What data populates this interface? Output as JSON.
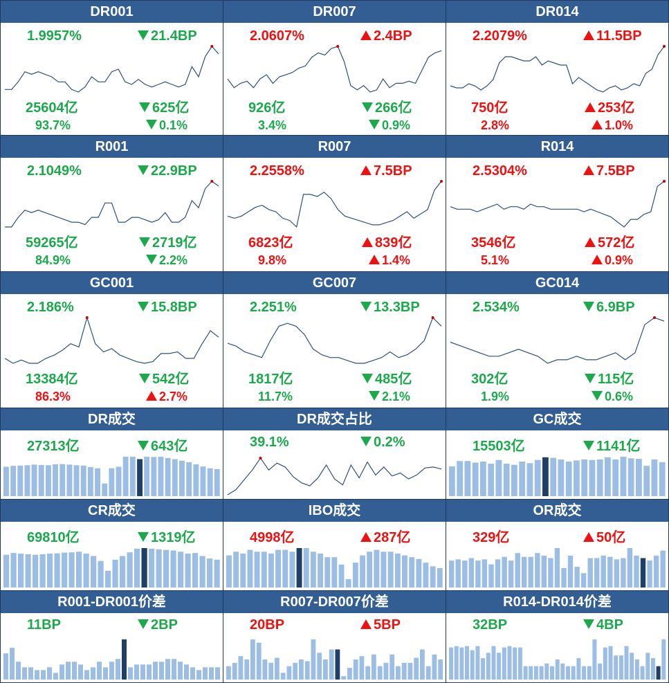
{
  "colors": {
    "up": "#ee1111",
    "down": "#1ba94c",
    "header": "#335e93",
    "line": "#2f4f7f",
    "bar": "#9cbde4",
    "bar_highlight": "#1f3f66",
    "peak": "#cc0000"
  },
  "chart_data": [
    {
      "name": "DR001",
      "type": "line",
      "rate": "1.9957%",
      "rate_dir": "down",
      "rate_change": "21.4BP",
      "rate_change_dir": "down",
      "volume": "25604亿",
      "volume_dir": "down",
      "volume_change": "625亿",
      "volume_change_dir": "down",
      "share": "93.7%",
      "share_dir": "down",
      "share_change": "0.1%",
      "share_change_dir": "down",
      "values": [
        1.85,
        1.85,
        1.88,
        1.92,
        1.91,
        1.92,
        1.91,
        1.9,
        1.88,
        1.88,
        1.85,
        1.84,
        1.86,
        1.9,
        1.88,
        1.88,
        1.92,
        1.93,
        1.88,
        1.87,
        1.89,
        1.87,
        1.86,
        1.87,
        1.88,
        1.87,
        1.86,
        1.87,
        1.94,
        1.9,
        1.98,
        2.02,
        1.99
      ]
    },
    {
      "name": "DR007",
      "type": "line",
      "rate": "2.0607%",
      "rate_dir": "up",
      "rate_change": "2.4BP",
      "rate_change_dir": "up",
      "volume": "926亿",
      "volume_dir": "down",
      "volume_change": "266亿",
      "volume_change_dir": "down",
      "share": "3.4%",
      "share_dir": "down",
      "share_change": "0.9%",
      "share_change_dir": "down",
      "values": [
        1.92,
        1.88,
        1.9,
        1.91,
        1.88,
        1.92,
        1.94,
        1.9,
        1.93,
        1.94,
        1.95,
        1.97,
        1.98,
        2.02,
        2.04,
        2.03,
        2.06,
        2.07,
        2.0,
        1.89,
        1.87,
        1.89,
        1.86,
        1.87,
        1.92,
        1.88,
        1.9,
        1.9,
        1.91,
        1.9,
        1.96,
        2.02,
        2.04,
        2.05
      ]
    },
    {
      "name": "DR014",
      "type": "line",
      "rate": "2.2079%",
      "rate_dir": "up",
      "rate_change": "11.5BP",
      "rate_change_dir": "up",
      "volume": "750亿",
      "volume_dir": "up",
      "volume_change": "253亿",
      "volume_change_dir": "up",
      "share": "2.8%",
      "share_dir": "up",
      "share_change": "1.0%",
      "share_change_dir": "up",
      "values": [
        2.02,
        2.01,
        2.01,
        2.03,
        2.02,
        2.0,
        2.02,
        2.05,
        2.13,
        2.16,
        2.16,
        2.15,
        2.14,
        2.14,
        2.16,
        2.12,
        2.14,
        2.13,
        2.12,
        2.12,
        2.03,
        2.06,
        2.04,
        2.02,
        2.0,
        1.99,
        2.01,
        2.02,
        2.0,
        2.01,
        2.03,
        2.02,
        2.08,
        2.1,
        2.17,
        2.21
      ]
    },
    {
      "name": "R001",
      "type": "line",
      "rate": "2.1049%",
      "rate_dir": "down",
      "rate_change": "22.9BP",
      "rate_change_dir": "down",
      "volume": "59265亿",
      "volume_dir": "down",
      "volume_change": "2719亿",
      "volume_change_dir": "down",
      "share": "84.9%",
      "share_dir": "down",
      "share_change": "2.2%",
      "share_change_dir": "down",
      "values": [
        1.93,
        1.93,
        1.97,
        2.0,
        1.99,
        2.0,
        1.99,
        1.98,
        1.97,
        1.96,
        1.95,
        1.95,
        1.94,
        1.97,
        1.97,
        2.03,
        2.03,
        1.95,
        1.95,
        1.97,
        1.97,
        1.96,
        1.95,
        1.96,
        1.99,
        1.95,
        1.95,
        1.97,
        2.04,
        2.01,
        2.09,
        2.12,
        2.1
      ]
    },
    {
      "name": "R007",
      "type": "line",
      "rate": "2.2558%",
      "rate_dir": "up",
      "rate_change": "7.5BP",
      "rate_change_dir": "up",
      "volume": "6823亿",
      "volume_dir": "up",
      "volume_change": "839亿",
      "volume_change_dir": "up",
      "share": "9.8%",
      "share_dir": "up",
      "share_change": "1.4%",
      "share_change_dir": "up",
      "values": [
        2.1,
        2.09,
        2.1,
        2.12,
        2.14,
        2.15,
        2.13,
        2.12,
        2.09,
        2.08,
        2.05,
        2.2,
        2.2,
        2.19,
        2.21,
        2.18,
        2.13,
        2.1,
        2.09,
        2.08,
        2.07,
        2.06,
        2.06,
        2.07,
        2.08,
        2.1,
        2.12,
        2.09,
        2.11,
        2.13,
        2.22,
        2.26
      ]
    },
    {
      "name": "R014",
      "type": "line",
      "rate": "2.5304%",
      "rate_dir": "up",
      "rate_change": "7.5BP",
      "rate_change_dir": "up",
      "volume": "3546亿",
      "volume_dir": "up",
      "volume_change": "572亿",
      "volume_change_dir": "up",
      "share": "5.1%",
      "share_dir": "up",
      "share_change": "0.9%",
      "share_change_dir": "up",
      "values": [
        2.43,
        2.42,
        2.42,
        2.42,
        2.41,
        2.42,
        2.43,
        2.44,
        2.42,
        2.43,
        2.43,
        2.42,
        2.44,
        2.43,
        2.43,
        2.42,
        2.42,
        2.42,
        2.42,
        2.42,
        2.41,
        2.42,
        2.41,
        2.4,
        2.39,
        2.37,
        2.35,
        2.38,
        2.38,
        2.4,
        2.41,
        2.51,
        2.53
      ]
    },
    {
      "name": "GC001",
      "type": "line",
      "rate": "2.186%",
      "rate_dir": "down",
      "rate_change": "15.8BP",
      "rate_change_dir": "down",
      "volume": "13384亿",
      "volume_dir": "down",
      "volume_change": "542亿",
      "volume_change_dir": "down",
      "share": "86.3%",
      "share_dir": "up",
      "share_change": "2.7%",
      "share_change_dir": "up",
      "values": [
        1.93,
        1.9,
        1.92,
        1.9,
        1.9,
        1.93,
        1.95,
        1.98,
        2.02,
        2.0,
        2.18,
        2.02,
        1.97,
        1.99,
        1.95,
        1.93,
        1.91,
        1.9,
        1.91,
        1.96,
        1.96,
        1.97,
        1.93,
        1.93,
        2.02,
        2.1,
        2.06
      ]
    },
    {
      "name": "GC007",
      "type": "line",
      "rate": "2.251%",
      "rate_dir": "down",
      "rate_change": "13.3BP",
      "rate_change_dir": "down",
      "volume": "1817亿",
      "volume_dir": "down",
      "volume_change": "485亿",
      "volume_change_dir": "down",
      "share": "11.7%",
      "share_dir": "down",
      "share_change": "2.1%",
      "share_change_dir": "down",
      "values": [
        2.17,
        2.16,
        2.14,
        2.13,
        2.12,
        2.18,
        2.23,
        2.24,
        2.23,
        2.2,
        2.15,
        2.13,
        2.12,
        2.12,
        2.11,
        2.1,
        2.1,
        2.11,
        2.12,
        2.14,
        2.12,
        2.13,
        2.15,
        2.18,
        2.26,
        2.23
      ]
    },
    {
      "name": "GC014",
      "type": "line",
      "rate": "2.534%",
      "rate_dir": "down",
      "rate_change": "6.9BP",
      "rate_change_dir": "down",
      "volume": "302亿",
      "volume_dir": "down",
      "volume_change": "115亿",
      "volume_change_dir": "down",
      "share": "1.9%",
      "share_dir": "down",
      "share_change": "0.6%",
      "share_change_dir": "down",
      "values": [
        2.47,
        2.46,
        2.45,
        2.44,
        2.43,
        2.43,
        2.44,
        2.45,
        2.44,
        2.43,
        2.41,
        2.42,
        2.42,
        2.43,
        2.42,
        2.42,
        2.43,
        2.44,
        2.42,
        2.44,
        2.52,
        2.54,
        2.53
      ]
    },
    {
      "name": "DR成交",
      "type": "bar",
      "value": "27313亿",
      "value_dir": "down",
      "change": "643亿",
      "change_dir": "down",
      "values": [
        25500,
        25800,
        25900,
        26000,
        26200,
        26100,
        26000,
        26300,
        26400,
        26200,
        26000,
        25900,
        25400,
        25000,
        20000,
        25000,
        25500,
        28800,
        28800,
        28000,
        28800,
        28700,
        28800,
        28400,
        28000,
        27500,
        27000,
        26300,
        25600,
        25000,
        24700
      ],
      "highlight_index": 19
    },
    {
      "name": "DR成交占比",
      "type": "line",
      "value": "39.1%",
      "value_dir": "down",
      "change": "0.2%",
      "change_dir": "down",
      "values": [
        36.0,
        36.5,
        37.5,
        38.5,
        39.7,
        38.5,
        39.2,
        38.8,
        37.8,
        37.2,
        36.9,
        37.7,
        39.0,
        37.6,
        37.0,
        39.0,
        37.7,
        39.3,
        38.0,
        38.8,
        37.9,
        38.2,
        37.6,
        38.0,
        38.7,
        38.8,
        38.6
      ]
    },
    {
      "name": "GC成交",
      "type": "bar",
      "value": "15503亿",
      "value_dir": "down",
      "change": "1141亿",
      "change_dir": "down",
      "values": [
        14500,
        15500,
        15500,
        15200,
        15400,
        15000,
        15700,
        15000,
        14800,
        15400,
        15100,
        15700,
        16200,
        16100,
        15800,
        15400,
        15600,
        15800,
        15700,
        15800,
        16200,
        15800,
        16300,
        16000,
        15900,
        14600,
        15800,
        15300
      ],
      "highlight_index": 12
    },
    {
      "name": "CR成交",
      "type": "bar",
      "value": "69810亿",
      "value_dir": "down",
      "change": "1319亿",
      "change_dir": "down",
      "values": [
        66000,
        67500,
        67000,
        66500,
        66000,
        66500,
        67000,
        67200,
        67800,
        68000,
        68500,
        67000,
        65000,
        61000,
        53000,
        62000,
        65000,
        68000,
        71000,
        71500,
        71000,
        70500,
        70000,
        69500,
        68500,
        67000,
        67500,
        65000,
        63000,
        62000
      ],
      "highlight_index": 19
    },
    {
      "name": "IBO成交",
      "type": "bar",
      "value": "4998亿",
      "value_dir": "up",
      "change": "287亿",
      "change_dir": "up",
      "values": [
        4400,
        4600,
        4500,
        4700,
        4600,
        4600,
        4500,
        4700,
        4700,
        4600,
        4800,
        4800,
        4600,
        4500,
        4300,
        4300,
        3900,
        3100,
        4000,
        4400,
        4600,
        4700,
        4600,
        4600,
        4500,
        4400,
        4300,
        4200,
        4000,
        3800,
        3700
      ],
      "highlight_index": 10
    },
    {
      "name": "OR成交",
      "type": "bar",
      "value": "329亿",
      "value_dir": "up",
      "change": "50亿",
      "change_dir": "up",
      "values": [
        300,
        305,
        300,
        310,
        300,
        305,
        285,
        305,
        315,
        300,
        330,
        315,
        315,
        330,
        320,
        310,
        350,
        270,
        320,
        275,
        250,
        310,
        310,
        320,
        315,
        305,
        310,
        350,
        320,
        310,
        300,
        320,
        340
      ],
      "highlight_index": 29
    },
    {
      "name": "R001-DR001价差",
      "type": "bar",
      "value": "11BP",
      "value_dir": "down",
      "change": "2BP",
      "change_dir": "down",
      "values": [
        13.5,
        14.5,
        12,
        11,
        11,
        10.5,
        10.5,
        11,
        10,
        11.5,
        12,
        12,
        11.5,
        10.5,
        11,
        12,
        11,
        12,
        12.5,
        16,
        11,
        11.5,
        11.5,
        11.5,
        12,
        12,
        12.5,
        12.5,
        12,
        11.5,
        11,
        10.5,
        11,
        11,
        11
      ],
      "highlight_index": 19
    },
    {
      "name": "R007-DR007价差",
      "type": "bar",
      "value": "20BP",
      "value_dir": "up",
      "change": "5BP",
      "change_dir": "up",
      "values": [
        8,
        10,
        14,
        12,
        24,
        22,
        12,
        10,
        13,
        4,
        8,
        10,
        12,
        11,
        24,
        16,
        12,
        18,
        18,
        2,
        7,
        12,
        14,
        8,
        15,
        8,
        10,
        15,
        8,
        10,
        10,
        13,
        18,
        8,
        15,
        12
      ],
      "highlight_index": 18
    },
    {
      "name": "R014-DR014价差",
      "type": "bar",
      "value": "32BP",
      "value_dir": "down",
      "change": "4BP",
      "change_dir": "down",
      "values": [
        24,
        25,
        24,
        25,
        22,
        25,
        16,
        20,
        25,
        20,
        24,
        25,
        24,
        24,
        10,
        10,
        10,
        10,
        12,
        10,
        15,
        12,
        10,
        10,
        16,
        10,
        10,
        30,
        12,
        24,
        25,
        18,
        18,
        25,
        20,
        15,
        10,
        20,
        16,
        10,
        30
      ],
      "highlight_index": 39
    }
  ]
}
